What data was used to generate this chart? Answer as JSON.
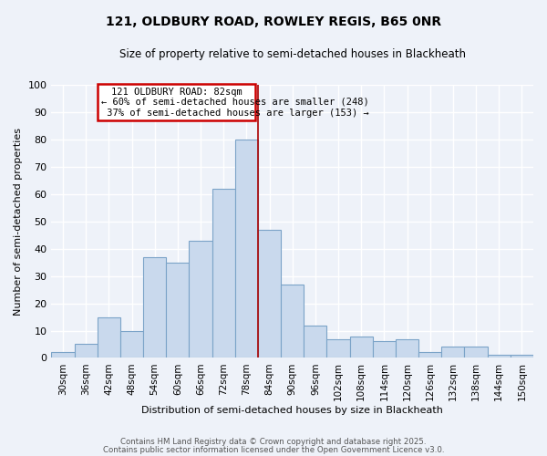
{
  "title1": "121, OLDBURY ROAD, ROWLEY REGIS, B65 0NR",
  "title2": "Size of property relative to semi-detached houses in Blackheath",
  "xlabel": "Distribution of semi-detached houses by size in Blackheath",
  "ylabel": "Number of semi-detached properties",
  "categories": [
    "30sqm",
    "36sqm",
    "42sqm",
    "48sqm",
    "54sqm",
    "60sqm",
    "66sqm",
    "72sqm",
    "78sqm",
    "84sqm",
    "90sqm",
    "96sqm",
    "102sqm",
    "108sqm",
    "114sqm",
    "120sqm",
    "126sqm",
    "132sqm",
    "138sqm",
    "144sqm",
    "150sqm"
  ],
  "values": [
    2,
    5,
    15,
    10,
    37,
    35,
    43,
    62,
    80,
    47,
    27,
    12,
    7,
    8,
    6,
    7,
    2,
    4,
    4,
    1,
    1
  ],
  "bar_color": "#c9d9ed",
  "bar_edge_color": "#7ba3c8",
  "vline_color": "#aa0000",
  "vline_index": 8,
  "annotation_title": "121 OLDBURY ROAD: 82sqm",
  "annotation_line1": "← 60% of semi-detached houses are smaller (248)",
  "annotation_line2": " 37% of semi-detached houses are larger (153) →",
  "box_edge_color": "#cc0000",
  "background_color": "#eef2f9",
  "grid_color": "#ffffff",
  "ylim": [
    0,
    100
  ],
  "yticks": [
    0,
    10,
    20,
    30,
    40,
    50,
    60,
    70,
    80,
    90,
    100
  ],
  "footer1": "Contains HM Land Registry data © Crown copyright and database right 2025.",
  "footer2": "Contains public sector information licensed under the Open Government Licence v3.0."
}
